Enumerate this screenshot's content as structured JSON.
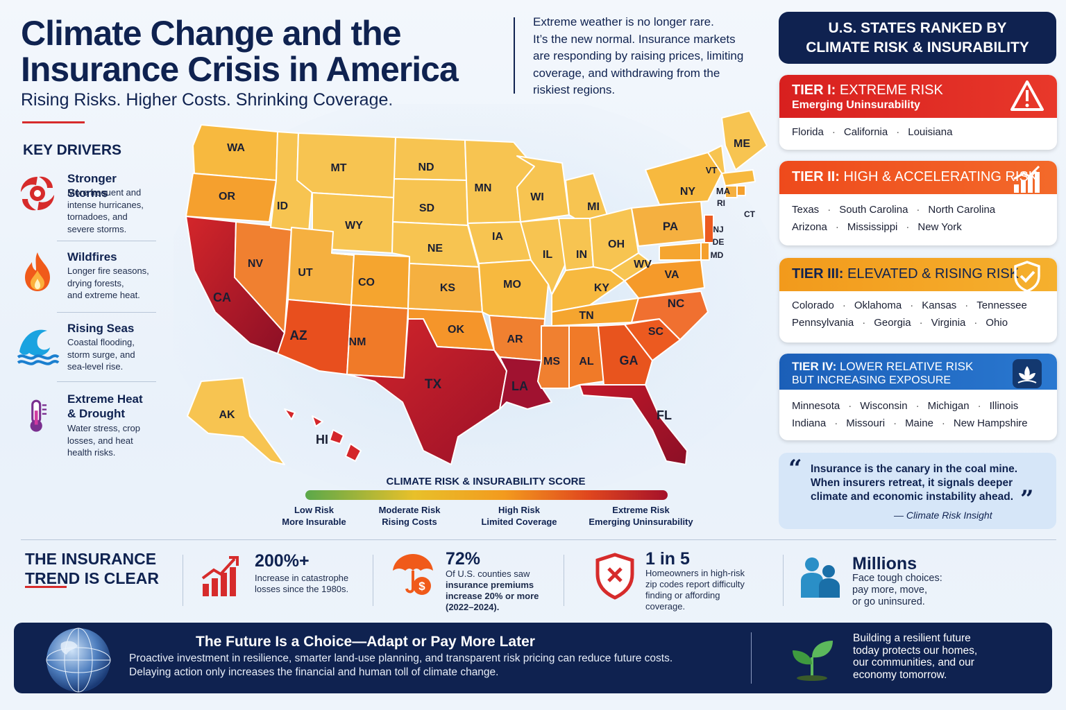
{
  "header": {
    "title_line1": "Climate Change and the",
    "title_line2": "Insurance Crisis in America",
    "subtitle": "Rising Risks. Higher Costs. Shrinking Coverage.",
    "intro_lines": [
      "Extreme weather is no longer rare.",
      "It’s the new normal. Insurance markets",
      "are responding by raising prices, limiting",
      "coverage, and withdrawing from the",
      "riskiest regions."
    ]
  },
  "key_drivers": {
    "title": "KEY DRIVERS",
    "items": [
      {
        "title": "Stronger Storms",
        "desc": [
          "More frequent and",
          "intense hurricanes,",
          "tornadoes, and",
          "severe storms."
        ],
        "icon": "hurricane-icon"
      },
      {
        "title": "Wildfires",
        "desc": [
          "Longer fire seasons,",
          "drying forests,",
          "and extreme heat."
        ],
        "icon": "fire-icon"
      },
      {
        "title": "Rising Seas",
        "desc": [
          "Coastal flooding,",
          "storm surge, and",
          "sea-level rise."
        ],
        "icon": "wave-icon"
      },
      {
        "title": "Extreme Heat",
        "title2": "& Drought",
        "desc": [
          "Water stress, crop",
          "losses, and heat",
          "health risks."
        ],
        "icon": "thermometer-icon"
      }
    ]
  },
  "map": {
    "states": [
      "WA",
      "OR",
      "CA",
      "NV",
      "ID",
      "MT",
      "WY",
      "UT",
      "AZ",
      "CO",
      "NM",
      "ND",
      "SD",
      "NE",
      "KS",
      "OK",
      "TX",
      "MN",
      "IA",
      "MO",
      "AR",
      "LA",
      "WI",
      "IL",
      "MI",
      "IN",
      "OH",
      "KY",
      "TN",
      "MS",
      "AL",
      "GA",
      "FL",
      "SC",
      "NC",
      "VA",
      "WV",
      "PA",
      "NY",
      "VT",
      "ME",
      "MA",
      "RI",
      "CT",
      "NJ",
      "DE",
      "MD",
      "AK",
      "HI"
    ],
    "colors": {
      "low": "#f7c451",
      "mid": "#f5a02e",
      "high": "#e8541e",
      "extreme": "#9c1129"
    }
  },
  "legend": {
    "title": "CLIMATE RISK & INSURABILITY SCORE",
    "labels": [
      {
        "l1": "Low Risk",
        "l2": "More Insurable"
      },
      {
        "l1": "Moderate Risk",
        "l2": "Rising Costs"
      },
      {
        "l1": "High Risk",
        "l2": "Limited Coverage"
      },
      {
        "l1": "Extreme Risk",
        "l2": "Emerging Uninsurability"
      }
    ]
  },
  "ranking": {
    "title_line1": "U.S. STATES RANKED BY",
    "title_line2": "CLIMATE RISK & INSURABILITY",
    "tiers": [
      {
        "tier": "TIER I:",
        "label": "EXTREME RISK",
        "sub": "Emerging Uninsurability",
        "color": "#d8201f",
        "rows": [
          [
            "Florida",
            "California",
            "Louisiana"
          ]
        ]
      },
      {
        "tier": "TIER II:",
        "label": "HIGH & ACCELERATING RISK",
        "sub": "",
        "color": "#ee4a1c",
        "rows": [
          [
            "Texas",
            "South Carolina",
            "North Carolina"
          ],
          [
            "Arizona",
            "Mississippi",
            "New York"
          ]
        ]
      },
      {
        "tier": "TIER III:",
        "label": "ELEVATED & RISING RISK",
        "sub": "",
        "color": "#f29a1c",
        "rows": [
          [
            "Colorado",
            "Oklahoma",
            "Kansas",
            "Tennessee"
          ],
          [
            "Pennsylvania",
            "Georgia",
            "Virginia",
            "Ohio"
          ]
        ]
      },
      {
        "tier": "TIER IV:",
        "label": "LOWER RELATIVE RISK",
        "sub": "BUT INCREASING EXPOSURE",
        "color": "#1b5fb8",
        "rows": [
          [
            "Minnesota",
            "Wisconsin",
            "Michigan",
            "Illinois"
          ],
          [
            "Indiana",
            "Missouri",
            "Maine",
            "New Hampshire"
          ]
        ]
      }
    ]
  },
  "quote": {
    "lines": [
      "Insurance is the canary in the coal mine.",
      "When insurers retreat, it signals deeper",
      "climate and economic instability ahead."
    ],
    "source": "— Climate Risk Insight"
  },
  "trend": {
    "title_line1": "THE INSURANCE",
    "title_line2": "TREND IS CLEAR",
    "stats": [
      {
        "num": "200%+",
        "desc": [
          "Increase in catastrophe",
          "losses since the 1980s."
        ]
      },
      {
        "num": "72%",
        "desc": [
          "Of U.S. counties saw"
        ],
        "bold": [
          "insurance premiums",
          "increase 20% or more",
          "(2022–2024)."
        ]
      },
      {
        "num": "1 in 5",
        "desc": [
          "Homeowners in high-risk",
          "zip codes report difficulty",
          "finding or affording",
          "coverage."
        ]
      },
      {
        "num": "Millions",
        "desc": [
          "Face tough choices:",
          "pay more, move,",
          "or go uninsured."
        ]
      }
    ]
  },
  "footer": {
    "title": "The Future Is a Choice—Adapt or Pay More Later",
    "text_lines": [
      "Proactive investment in resilience, smarter land-use planning, and transparent risk pricing can reduce future costs.",
      "Delaying action only increases the financial and human toll of climate change."
    ],
    "right_lines": [
      "Building a resilient future",
      "today protects our homes,",
      "our communities, and our",
      "economy tomorrow."
    ]
  }
}
